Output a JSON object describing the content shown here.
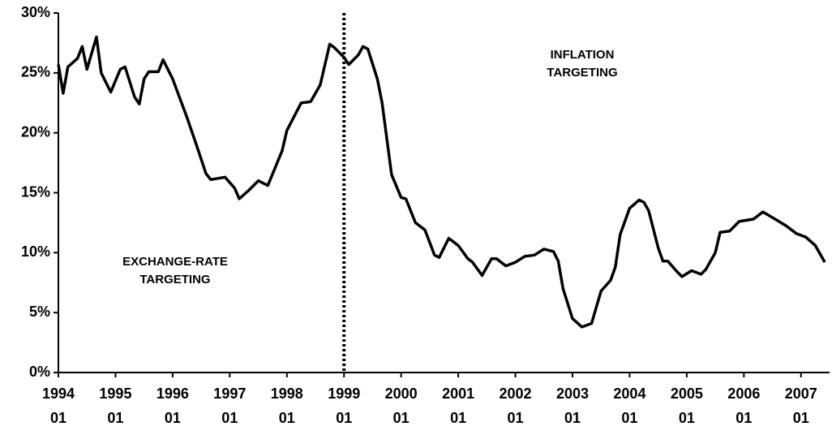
{
  "chart_data": {
    "type": "line",
    "color": "#000000",
    "x": [
      "1994-01",
      "1994-02",
      "1994-03",
      "1994-05",
      "1994-06",
      "1994-07",
      "1994-09",
      "1994-10",
      "1994-12",
      "1995-02",
      "1995-03",
      "1995-05",
      "1995-06",
      "1995-07",
      "1995-08",
      "1995-10",
      "1995-11",
      "1996-01",
      "1996-04",
      "1996-06",
      "1996-08",
      "1996-09",
      "1996-12",
      "1997-02",
      "1997-03",
      "1997-05",
      "1997-07",
      "1997-09",
      "1997-12",
      "1998-01",
      "1998-04",
      "1998-06",
      "1998-08",
      "1998-10",
      "1998-11",
      "1999-01",
      "1999-02",
      "1999-04",
      "1999-05",
      "1999-06",
      "1999-08",
      "1999-09",
      "1999-11",
      "2000-01",
      "2000-02",
      "2000-04",
      "2000-06",
      "2000-08",
      "2000-09",
      "2000-11",
      "2001-01",
      "2001-03",
      "2001-04",
      "2001-06",
      "2001-08",
      "2001-09",
      "2001-11",
      "2002-01",
      "2002-03",
      "2002-05",
      "2002-07",
      "2002-09",
      "2002-10",
      "2002-11",
      "2003-01",
      "2003-03",
      "2003-05",
      "2003-07",
      "2003-09",
      "2003-10",
      "2003-11",
      "2004-01",
      "2004-03",
      "2004-04",
      "2004-05",
      "2004-07",
      "2004-08",
      "2004-09",
      "2004-11",
      "2004-12",
      "2005-02",
      "2005-04",
      "2005-05",
      "2005-07",
      "2005-08",
      "2005-10",
      "2005-12",
      "2006-03",
      "2006-05",
      "2006-08",
      "2006-10",
      "2006-12",
      "2007-02",
      "2007-04",
      "2007-06"
    ],
    "values": [
      25.7,
      23.3,
      25.5,
      26.2,
      27.2,
      25.3,
      28.0,
      25.0,
      23.4,
      25.3,
      25.5,
      23.0,
      22.4,
      24.5,
      25.1,
      25.1,
      26.1,
      24.5,
      21.3,
      19.0,
      16.6,
      16.1,
      16.3,
      15.4,
      14.5,
      15.2,
      16.0,
      15.6,
      18.5,
      20.2,
      22.5,
      22.6,
      24.0,
      27.4,
      27.1,
      26.3,
      25.7,
      26.5,
      27.2,
      27.0,
      24.5,
      22.5,
      16.5,
      14.6,
      14.5,
      12.5,
      11.9,
      9.8,
      9.6,
      11.2,
      10.6,
      9.5,
      9.2,
      8.1,
      9.5,
      9.5,
      8.9,
      9.2,
      9.7,
      9.8,
      10.3,
      10.1,
      9.3,
      7.0,
      4.5,
      3.8,
      4.1,
      6.8,
      7.7,
      8.8,
      11.5,
      13.7,
      14.4,
      14.2,
      13.5,
      10.4,
      9.3,
      9.3,
      8.4,
      8.0,
      8.5,
      8.2,
      8.6,
      10.0,
      11.7,
      11.8,
      12.6,
      12.8,
      13.4,
      12.7,
      12.2,
      11.6,
      11.3,
      10.6,
      9.2
    ],
    "xlim": [
      "1994-01",
      "2007-07"
    ],
    "xticks": [
      {
        "value": "1994-01",
        "label": "1994\n01"
      },
      {
        "value": "1995-01",
        "label": "1995\n01"
      },
      {
        "value": "1996-01",
        "label": "1996\n01"
      },
      {
        "value": "1997-01",
        "label": "1997\n01"
      },
      {
        "value": "1998-01",
        "label": "1998\n01"
      },
      {
        "value": "1999-01",
        "label": "1999\n01"
      },
      {
        "value": "2000-01",
        "label": "2000\n01"
      },
      {
        "value": "2001-01",
        "label": "2001\n01"
      },
      {
        "value": "2002-01",
        "label": "2002\n01"
      },
      {
        "value": "2003-01",
        "label": "2003\n01"
      },
      {
        "value": "2004-01",
        "label": "2004\n01"
      },
      {
        "value": "2005-01",
        "label": "2005\n01"
      },
      {
        "value": "2006-01",
        "label": "2006\n01"
      },
      {
        "value": "2007-01",
        "label": "2007\n01"
      }
    ],
    "ylim": [
      0,
      30
    ],
    "yticks": [
      {
        "value": 0,
        "label": "0%"
      },
      {
        "value": 5,
        "label": "5%"
      },
      {
        "value": 10,
        "label": "10%"
      },
      {
        "value": 15,
        "label": "15%"
      },
      {
        "value": 20,
        "label": "20%"
      },
      {
        "value": 25,
        "label": "25%"
      },
      {
        "value": 30,
        "label": "30%"
      }
    ],
    "vline": "1999-01",
    "annotations": [
      "EXCHANGE-RATE\nTARGETING",
      "INFLATION\nTARGETING"
    ]
  }
}
